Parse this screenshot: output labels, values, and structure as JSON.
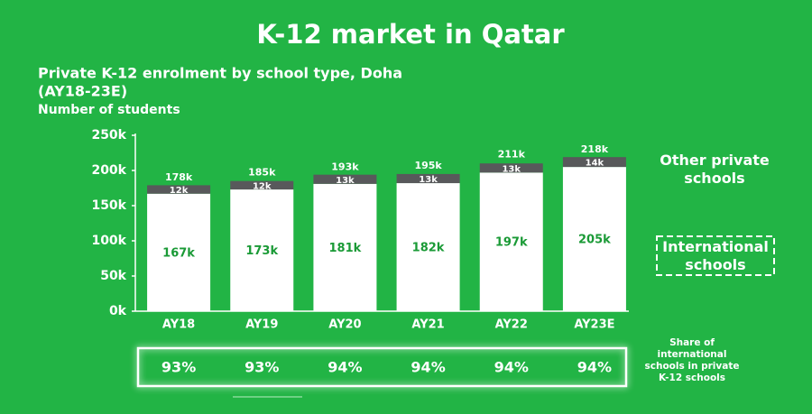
{
  "chart_data": {
    "type": "bar",
    "stacked": true,
    "title": "K-12 market in Qatar",
    "subtitle": [
      "Private K-12 enrolment by school type, Doha",
      "(AY18-23E)"
    ],
    "y_label": "Number of students",
    "categories": [
      "AY18",
      "AY19",
      "AY20",
      "AY21",
      "AY22",
      "AY23E"
    ],
    "series": [
      {
        "name": "International schools",
        "color": "#ffffff",
        "label_color": "#1a9a36",
        "values": [
          167000,
          173000,
          181000,
          182000,
          197000,
          205000
        ],
        "value_labels": [
          "167k",
          "173k",
          "181k",
          "182k",
          "197k",
          "205k"
        ]
      },
      {
        "name": "Other private schools",
        "color": "#58595b",
        "label_color": "#ffffff",
        "values": [
          12000,
          12000,
          13000,
          13000,
          13000,
          14000
        ],
        "value_labels": [
          "12k",
          "12k",
          "13k",
          "13k",
          "13k",
          "14k"
        ]
      }
    ],
    "totals": {
      "values": [
        178000,
        185000,
        193000,
        195000,
        211000,
        218000
      ],
      "value_labels": [
        "178k",
        "185k",
        "193k",
        "195k",
        "211k",
        "218k"
      ]
    },
    "ylim": [
      0,
      250000
    ],
    "yticks": [
      {
        "value": 0,
        "label": "0k"
      },
      {
        "value": 50000,
        "label": "50k"
      },
      {
        "value": 100000,
        "label": "100k"
      },
      {
        "value": 150000,
        "label": "150k"
      },
      {
        "value": 200000,
        "label": "200k"
      },
      {
        "value": 250000,
        "label": "250k"
      }
    ],
    "share": {
      "label": "Share of international schools in private K-12 schools",
      "values": [
        93,
        93,
        94,
        94,
        94,
        94
      ],
      "value_labels": [
        "93%",
        "93%",
        "94%",
        "94%",
        "94%",
        "94%"
      ]
    }
  }
}
